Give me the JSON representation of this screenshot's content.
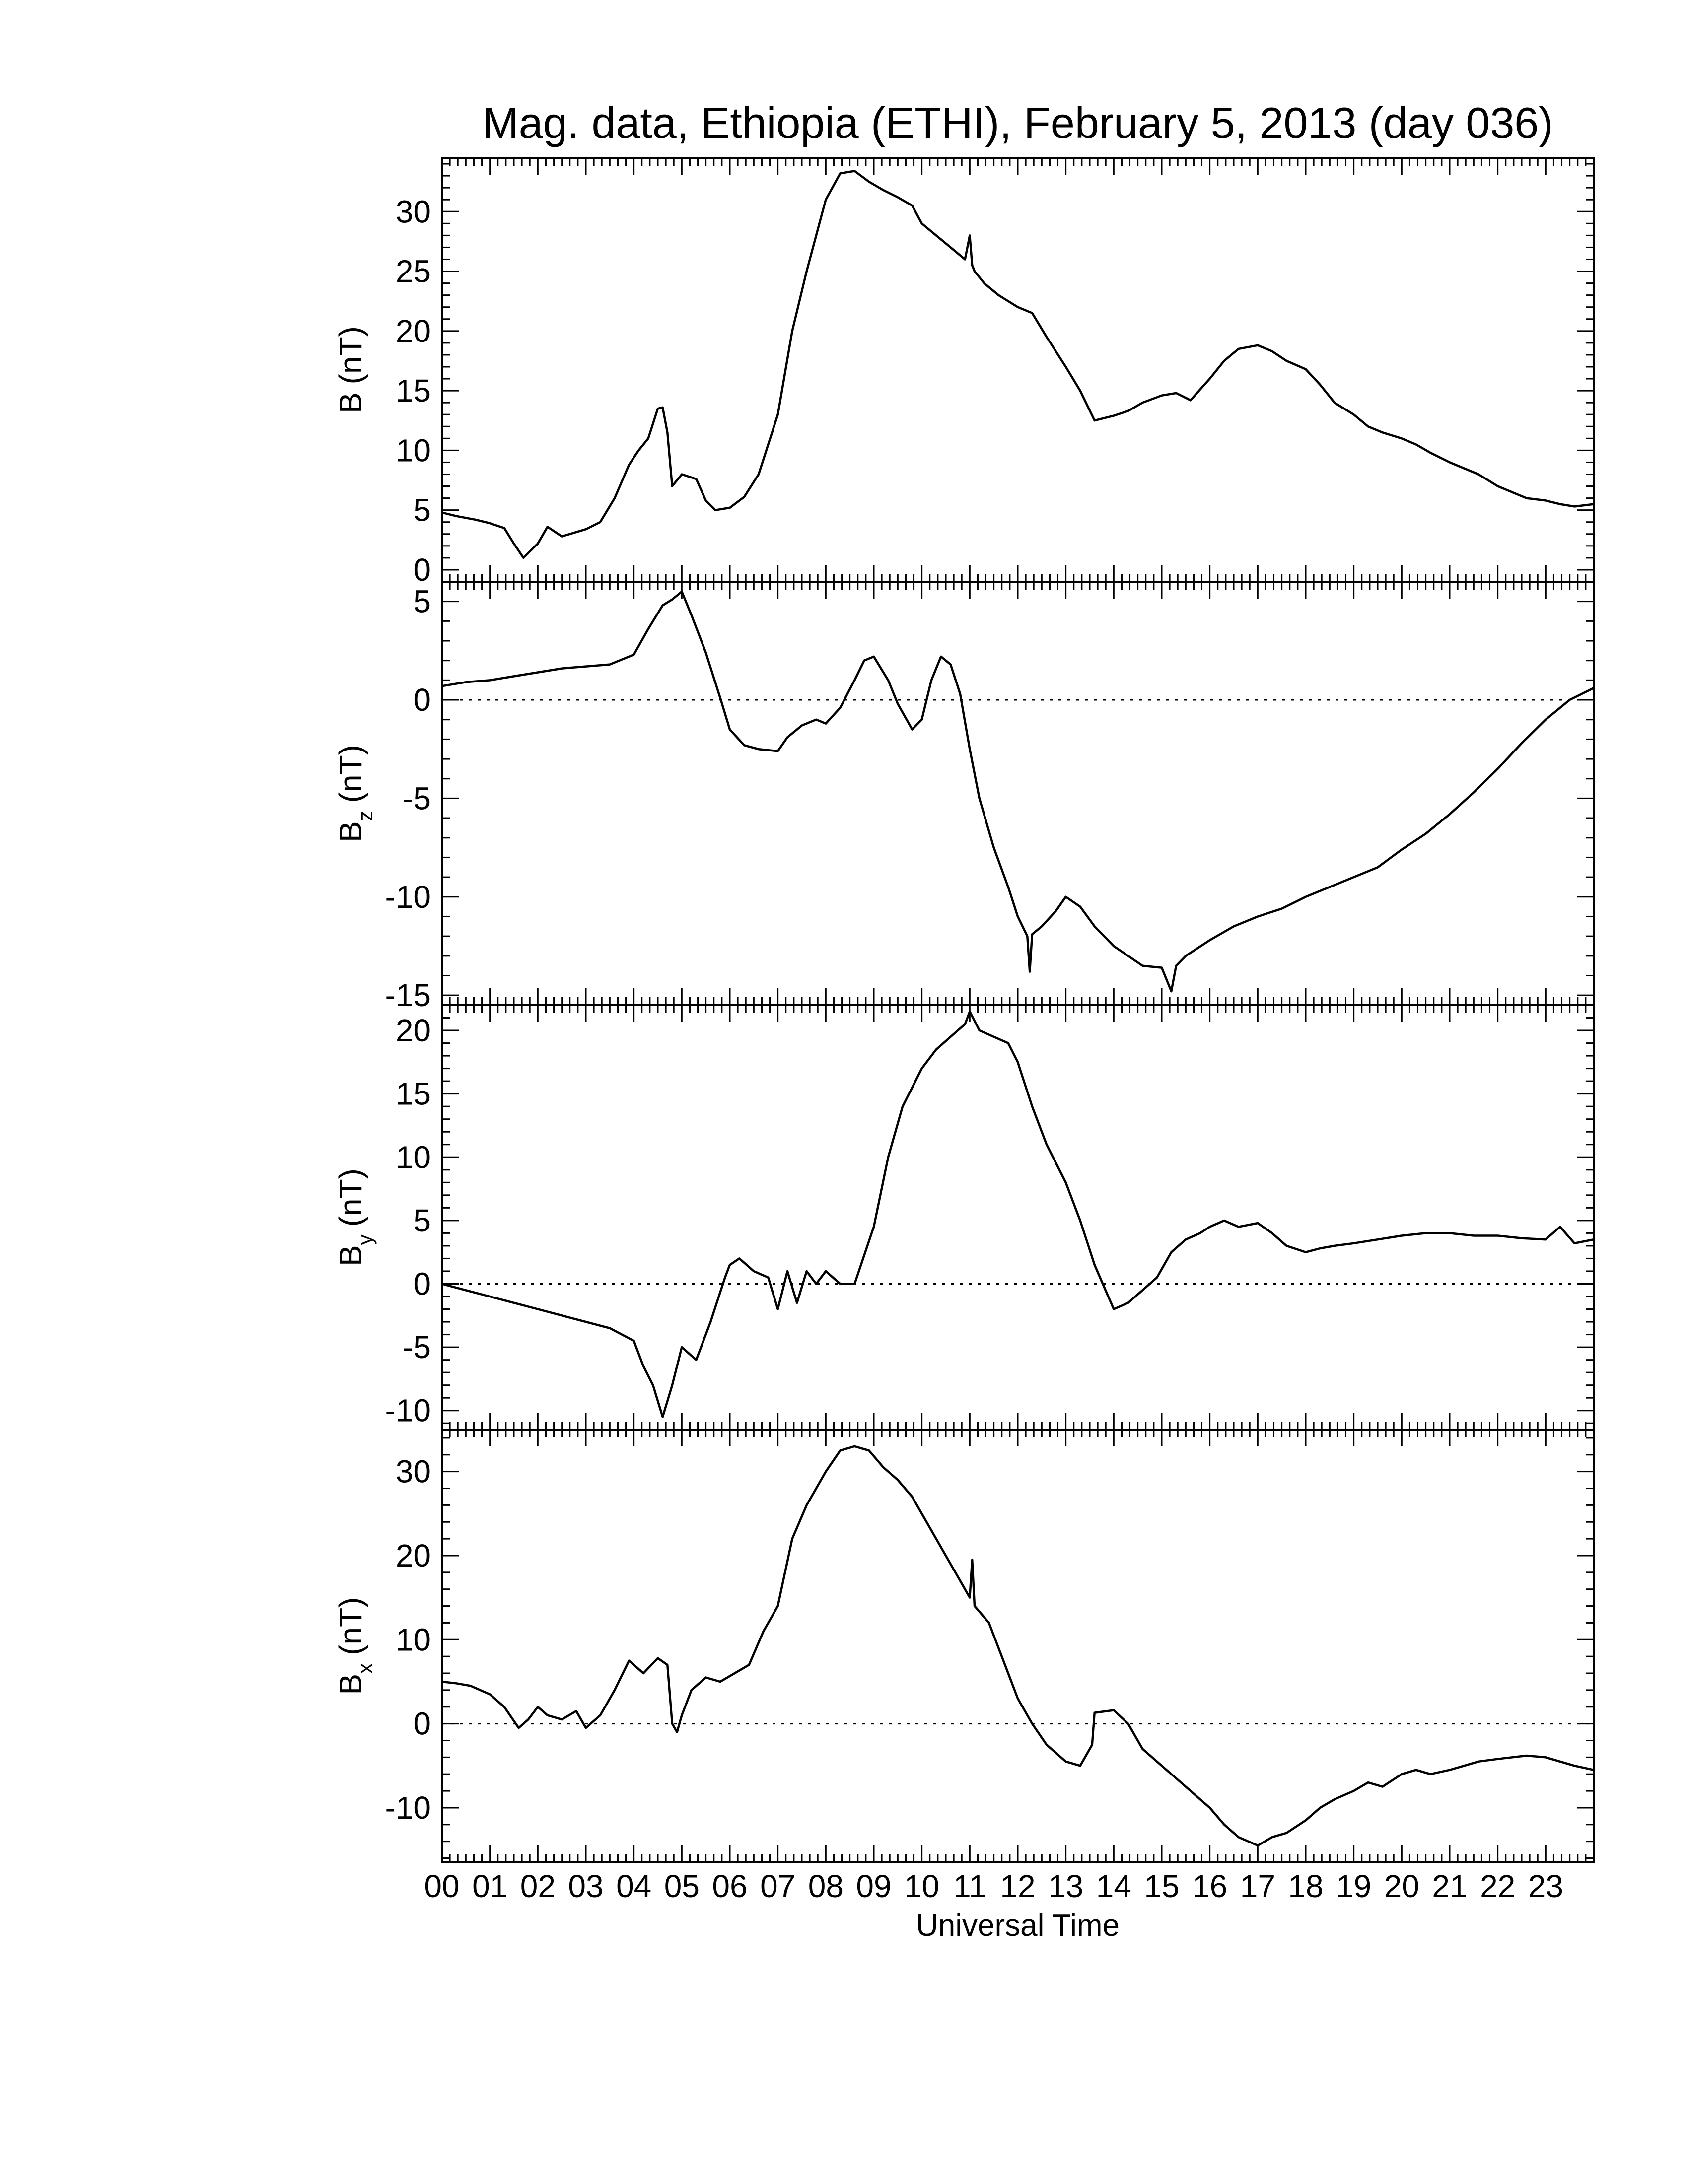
{
  "chart_data": {
    "type": "line",
    "title": "Mag. data, Ethiopia (ETHI), February 5, 2013 (day 036)",
    "xlabel": "Universal Time",
    "xlim": [
      0,
      24
    ],
    "x_tick_labels": [
      "00",
      "01",
      "02",
      "03",
      "04",
      "05",
      "06",
      "07",
      "08",
      "09",
      "10",
      "11",
      "12",
      "13",
      "14",
      "15",
      "16",
      "17",
      "18",
      "19",
      "20",
      "21",
      "22",
      "23"
    ],
    "panels": [
      {
        "id": "B",
        "ylabel_main": "B",
        "ylabel_sub": "",
        "ylabel_unit": "(nT)",
        "ylim": [
          -1,
          34.5
        ],
        "yticks": [
          0,
          5,
          10,
          15,
          20,
          25,
          30
        ],
        "ytick_labels": [
          "0",
          "5",
          "10",
          "15",
          "20",
          "25",
          "30"
        ],
        "zero_line": false,
        "series": {
          "x": [
            0,
            0.3,
            0.7,
            1.0,
            1.3,
            1.5,
            1.7,
            2.0,
            2.2,
            2.5,
            3.0,
            3.3,
            3.6,
            3.9,
            4.1,
            4.3,
            4.5,
            4.6,
            4.7,
            4.8,
            5.0,
            5.3,
            5.5,
            5.7,
            6.0,
            6.3,
            6.6,
            7.0,
            7.3,
            7.6,
            8.0,
            8.3,
            8.6,
            8.9,
            9.2,
            9.5,
            9.8,
            10.0,
            10.3,
            10.6,
            10.9,
            11.0,
            11.05,
            11.1,
            11.3,
            11.6,
            12.0,
            12.3,
            12.6,
            13.0,
            13.3,
            13.6,
            14.0,
            14.3,
            14.6,
            15.0,
            15.3,
            15.6,
            16.0,
            16.3,
            16.6,
            17.0,
            17.3,
            17.6,
            18.0,
            18.3,
            18.6,
            19.0,
            19.3,
            19.6,
            20.0,
            20.3,
            20.6,
            21.0,
            21.3,
            21.6,
            22.0,
            22.3,
            22.6,
            23.0,
            23.3,
            23.6,
            24.0
          ],
          "y": [
            4.8,
            4.5,
            4.2,
            3.9,
            3.5,
            2.2,
            1.0,
            2.2,
            3.6,
            2.8,
            3.4,
            4.0,
            6.0,
            8.8,
            10.0,
            11.0,
            13.5,
            13.6,
            11.5,
            7.0,
            8.0,
            7.6,
            5.8,
            5.0,
            5.2,
            6.1,
            8.0,
            13.0,
            20.0,
            25.0,
            31.0,
            33.2,
            33.4,
            32.5,
            31.8,
            31.2,
            30.5,
            29.0,
            28.0,
            27.0,
            26.0,
            28.0,
            25.5,
            25.0,
            24.0,
            23.0,
            22.0,
            21.5,
            19.5,
            17.0,
            15.0,
            12.5,
            12.9,
            13.3,
            14.0,
            14.6,
            14.8,
            14.2,
            16.0,
            17.5,
            18.5,
            18.8,
            18.3,
            17.5,
            16.8,
            15.5,
            14.0,
            13.0,
            12.0,
            11.5,
            11.0,
            10.5,
            9.8,
            9.0,
            8.5,
            8.0,
            7.0,
            6.5,
            6.0,
            5.8,
            5.5,
            5.3,
            5.5
          ]
        }
      },
      {
        "id": "Bz",
        "ylabel_main": "B",
        "ylabel_sub": "z",
        "ylabel_unit": "(nT)",
        "ylim": [
          -15.5,
          6.0
        ],
        "yticks": [
          -15,
          -10,
          -5,
          0,
          5
        ],
        "ytick_labels": [
          "-15",
          "-10",
          "-5",
          "0",
          "5"
        ],
        "zero_line": true,
        "series": {
          "x": [
            0,
            0.5,
            1.0,
            1.5,
            2.0,
            2.5,
            3.0,
            3.5,
            4.0,
            4.3,
            4.6,
            4.8,
            5.0,
            5.2,
            5.5,
            5.8,
            6.0,
            6.3,
            6.6,
            7.0,
            7.2,
            7.5,
            7.8,
            8.0,
            8.3,
            8.6,
            8.8,
            9.0,
            9.3,
            9.5,
            9.8,
            10.0,
            10.2,
            10.4,
            10.6,
            10.8,
            11.0,
            11.2,
            11.5,
            11.8,
            12.0,
            12.2,
            12.25,
            12.3,
            12.5,
            12.8,
            13.0,
            13.3,
            13.6,
            14.0,
            14.3,
            14.6,
            15.0,
            15.2,
            15.3,
            15.5,
            16.0,
            16.5,
            17.0,
            17.5,
            18.0,
            18.5,
            19.0,
            19.5,
            20.0,
            20.5,
            21.0,
            21.5,
            22.0,
            22.5,
            23.0,
            23.5,
            24.0
          ],
          "y": [
            0.7,
            0.9,
            1.0,
            1.2,
            1.4,
            1.6,
            1.7,
            1.8,
            2.3,
            3.6,
            4.8,
            5.1,
            5.5,
            4.3,
            2.4,
            0.1,
            -1.5,
            -2.3,
            -2.5,
            -2.6,
            -1.9,
            -1.3,
            -1.0,
            -1.2,
            -0.4,
            1.0,
            2.0,
            2.2,
            1.0,
            -0.2,
            -1.5,
            -1.0,
            1.0,
            2.2,
            1.8,
            0.3,
            -2.5,
            -5.0,
            -7.5,
            -9.5,
            -11.0,
            -12.0,
            -13.8,
            -11.9,
            -11.5,
            -10.7,
            -10.0,
            -10.5,
            -11.5,
            -12.5,
            -13.0,
            -13.5,
            -13.6,
            -14.8,
            -13.5,
            -13.0,
            -12.2,
            -11.5,
            -11.0,
            -10.6,
            -10.0,
            -9.5,
            -9.0,
            -8.5,
            -7.6,
            -6.8,
            -5.8,
            -4.7,
            -3.5,
            -2.2,
            -1.0,
            0.0,
            0.6
          ]
        }
      },
      {
        "id": "By",
        "ylabel_main": "B",
        "ylabel_sub": "y",
        "ylabel_unit": "(nT)",
        "ylim": [
          -11.5,
          22.0
        ],
        "yticks": [
          -10,
          -5,
          0,
          5,
          10,
          15,
          20
        ],
        "ytick_labels": [
          "-10",
          "-5",
          "0",
          "5",
          "10",
          "15",
          "20"
        ],
        "zero_line": true,
        "series": {
          "x": [
            0,
            0.5,
            1.0,
            1.5,
            2.0,
            2.5,
            3.0,
            3.5,
            4.0,
            4.2,
            4.4,
            4.6,
            4.8,
            5.0,
            5.3,
            5.6,
            5.9,
            6.0,
            6.2,
            6.5,
            6.8,
            7.0,
            7.2,
            7.4,
            7.6,
            7.8,
            8.0,
            8.3,
            8.6,
            9.0,
            9.3,
            9.6,
            10.0,
            10.3,
            10.6,
            10.9,
            11.0,
            11.2,
            11.5,
            11.8,
            12.0,
            12.3,
            12.6,
            13.0,
            13.3,
            13.6,
            14.0,
            14.3,
            14.6,
            14.9,
            15.2,
            15.5,
            15.8,
            16.0,
            16.3,
            16.6,
            17.0,
            17.3,
            17.6,
            18.0,
            18.3,
            18.6,
            19.0,
            19.5,
            20.0,
            20.5,
            21.0,
            21.5,
            22.0,
            22.5,
            23.0,
            23.3,
            23.6,
            24.0
          ],
          "y": [
            0.0,
            -0.5,
            -1.0,
            -1.5,
            -2.0,
            -2.5,
            -3.0,
            -3.5,
            -4.5,
            -6.5,
            -8.0,
            -10.5,
            -8.0,
            -5.0,
            -6.0,
            -3.0,
            0.5,
            1.5,
            2.0,
            1.0,
            0.5,
            -2.0,
            1.0,
            -1.5,
            1.0,
            0.0,
            1.0,
            0.0,
            0.0,
            4.5,
            10.0,
            14.0,
            17.0,
            18.5,
            19.5,
            20.5,
            21.5,
            20.0,
            19.5,
            19.0,
            17.5,
            14.0,
            11.0,
            8.0,
            5.0,
            1.5,
            -2.0,
            -1.5,
            -0.5,
            0.5,
            2.5,
            3.5,
            4.0,
            4.5,
            5.0,
            4.5,
            4.8,
            4.0,
            3.0,
            2.5,
            2.8,
            3.0,
            3.2,
            3.5,
            3.8,
            4.0,
            4.0,
            3.8,
            3.8,
            3.6,
            3.5,
            4.5,
            3.2,
            3.5
          ]
        }
      },
      {
        "id": "Bx",
        "ylabel_main": "B",
        "ylabel_sub": "x",
        "ylabel_unit": "(nT)",
        "ylim": [
          -16.5,
          35.0
        ],
        "yticks": [
          -10,
          0,
          10,
          20,
          30
        ],
        "ytick_labels": [
          "-10",
          "0",
          "10",
          "20",
          "30"
        ],
        "zero_line": true,
        "series": {
          "x": [
            0,
            0.3,
            0.6,
            1.0,
            1.3,
            1.6,
            1.8,
            2.0,
            2.2,
            2.5,
            2.8,
            3.0,
            3.3,
            3.6,
            3.9,
            4.2,
            4.5,
            4.7,
            4.8,
            4.9,
            5.0,
            5.2,
            5.5,
            5.8,
            6.1,
            6.4,
            6.7,
            7.0,
            7.3,
            7.6,
            8.0,
            8.3,
            8.6,
            8.9,
            9.2,
            9.5,
            9.8,
            10.1,
            10.4,
            10.7,
            11.0,
            11.05,
            11.1,
            11.4,
            11.7,
            12.0,
            12.3,
            12.6,
            13.0,
            13.3,
            13.55,
            13.6,
            14.0,
            14.3,
            14.6,
            15.0,
            15.3,
            15.6,
            16.0,
            16.3,
            16.6,
            17.0,
            17.3,
            17.6,
            18.0,
            18.3,
            18.6,
            19.0,
            19.3,
            19.6,
            20.0,
            20.3,
            20.6,
            21.0,
            21.3,
            21.6,
            22.0,
            22.3,
            22.6,
            23.0,
            23.3,
            23.6,
            24.0
          ],
          "y": [
            5.0,
            4.8,
            4.5,
            3.5,
            2.0,
            -0.5,
            0.5,
            2.0,
            1.0,
            0.5,
            1.5,
            -0.5,
            1.0,
            4.0,
            7.5,
            6.0,
            7.8,
            7.0,
            0.0,
            -1.0,
            1.0,
            4.0,
            5.5,
            5.0,
            6.0,
            7.0,
            11.0,
            14.0,
            22.0,
            26.0,
            30.0,
            32.5,
            33.0,
            32.5,
            30.5,
            29.0,
            27.0,
            24.0,
            21.0,
            18.0,
            15.0,
            19.5,
            14.0,
            12.0,
            7.5,
            3.0,
            0.0,
            -2.5,
            -4.5,
            -5.0,
            -2.5,
            1.3,
            1.6,
            0.0,
            -3.0,
            -5.0,
            -6.5,
            -8.0,
            -10.0,
            -12.0,
            -13.5,
            -14.5,
            -13.5,
            -13.0,
            -11.5,
            -10.0,
            -9.0,
            -8.0,
            -7.0,
            -7.5,
            -6.0,
            -5.5,
            -6.0,
            -5.5,
            -5.0,
            -4.5,
            -4.2,
            -4.0,
            -3.8,
            -4.0,
            -4.5,
            -5.0,
            -5.5
          ]
        }
      }
    ]
  }
}
